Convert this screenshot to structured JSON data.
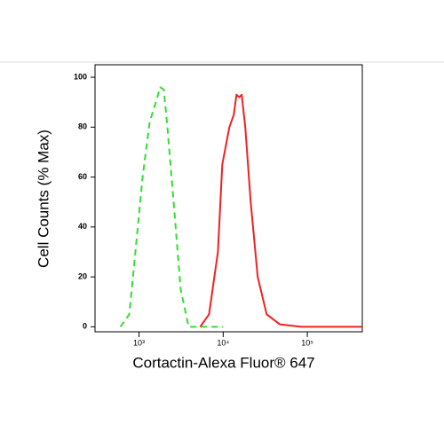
{
  "chart_data": {
    "type": "line",
    "x_label": "Cortactin-Alexa Fluor® 647",
    "y_label": "Cell Counts (% Max)",
    "xscale": "log",
    "xlim": [
      300,
      450000
    ],
    "xticks": [
      {
        "value": 1000,
        "label": "10³"
      },
      {
        "value": 10000,
        "label": "10⁴"
      },
      {
        "value": 100000,
        "label": "10⁵"
      }
    ],
    "ylim": [
      -2,
      105
    ],
    "yticks": [
      0,
      20,
      40,
      60,
      80,
      100
    ],
    "series": [
      {
        "color": "#33dd33",
        "dash": true,
        "x": [
          601,
          766,
          907,
          1102,
          1337,
          1585,
          1790,
          1972,
          2173,
          2575,
          3126,
          3882,
          10000
        ],
        "values": [
          0,
          5,
          30,
          60,
          82,
          90,
          96,
          95,
          80,
          50,
          15,
          0,
          0
        ]
      },
      {
        "color": "#ee2222",
        "dash": false,
        "x": [
          5321,
          6790,
          8650,
          9750,
          11860,
          13370,
          14400,
          15500,
          16600,
          18300,
          21200,
          25700,
          32900,
          47000,
          85000,
          450000
        ],
        "values": [
          0,
          5,
          30,
          65,
          80,
          85,
          93,
          92,
          93,
          80,
          50,
          20,
          5,
          1,
          0,
          0
        ]
      }
    ]
  }
}
